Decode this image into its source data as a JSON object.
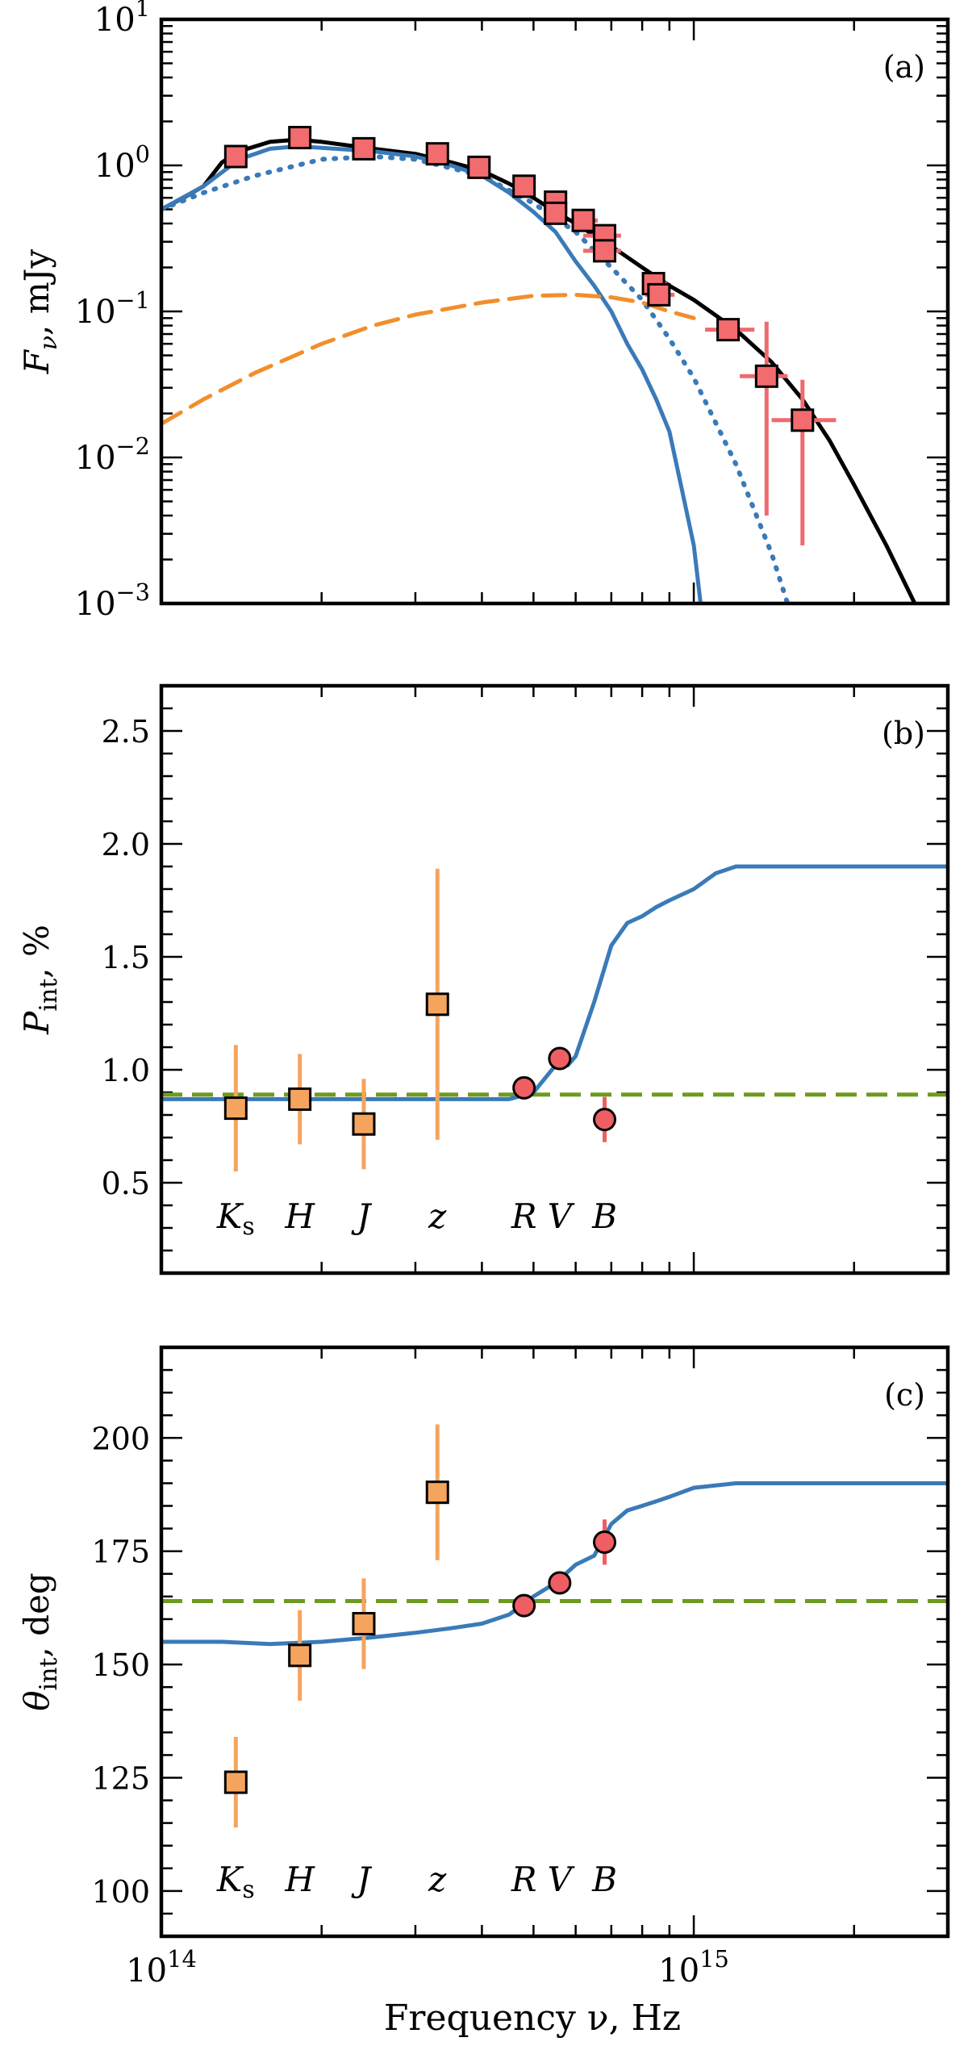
{
  "figure": {
    "xlabel": "Frequency ν, Hz",
    "x_tick_labels": [
      {
        "base": "10",
        "exp": "14",
        "value": 100000000000000.0
      },
      {
        "base": "10",
        "exp": "15",
        "value": 1000000000000000.0
      }
    ]
  },
  "chart_data": [
    {
      "panel": "(a)",
      "type": "line",
      "x_scale": "log",
      "y_scale": "log",
      "xlim": [
        100000000000000.0,
        3000000000000000.0
      ],
      "ylim": [
        0.001,
        10
      ],
      "ylabel": {
        "main": "F",
        "sub": "ν",
        "rest": ", mJy"
      },
      "y_tick_labels": [
        {
          "base": "10",
          "exp": "−3",
          "value": 0.001
        },
        {
          "base": "10",
          "exp": "−2",
          "value": 0.01
        },
        {
          "base": "10",
          "exp": "−1",
          "value": 0.1
        },
        {
          "base": "10",
          "exp": "0",
          "value": 1
        },
        {
          "base": "10",
          "exp": "1",
          "value": 10
        }
      ],
      "series": [
        {
          "style": "solid",
          "color": "#000000",
          "x": [
            100000000000000.0,
            110000000000000.0,
            120000000000000.0,
            130000000000000.0,
            140000000000000.0,
            160000000000000.0,
            180000000000000.0,
            200000000000000.0,
            250000000000000.0,
            300000000000000.0,
            350000000000000.0,
            400000000000000.0,
            450000000000000.0,
            500000000000000.0,
            550000000000000.0,
            600000000000000.0,
            700000000000000.0,
            800000000000000.0,
            900000000000000.0,
            1000000000000000.0,
            1200000000000000.0,
            1400000000000000.0,
            1600000000000000.0,
            1800000000000000.0,
            2000000000000000.0,
            2300000000000000.0,
            2600000000000000.0
          ],
          "y": [
            0.5,
            0.6,
            0.72,
            1.05,
            1.25,
            1.45,
            1.5,
            1.45,
            1.3,
            1.2,
            1.05,
            0.92,
            0.75,
            0.6,
            0.48,
            0.4,
            0.28,
            0.2,
            0.15,
            0.12,
            0.075,
            0.045,
            0.025,
            0.013,
            0.0065,
            0.0025,
            0.001
          ]
        },
        {
          "style": "solid",
          "color": "#3a7ab8",
          "x": [
            100000000000000.0,
            120000000000000.0,
            140000000000000.0,
            160000000000000.0,
            180000000000000.0,
            200000000000000.0,
            250000000000000.0,
            300000000000000.0,
            350000000000000.0,
            400000000000000.0,
            450000000000000.0,
            500000000000000.0,
            550000000000000.0,
            600000000000000.0,
            650000000000000.0,
            700000000000000.0,
            750000000000000.0,
            800000000000000.0,
            850000000000000.0,
            900000000000000.0,
            950000000000000.0,
            1000000000000000.0,
            1030000000000000.0
          ],
          "y": [
            0.5,
            0.72,
            1.1,
            1.3,
            1.35,
            1.32,
            1.25,
            1.15,
            1.0,
            0.85,
            0.65,
            0.48,
            0.35,
            0.22,
            0.15,
            0.1,
            0.06,
            0.04,
            0.025,
            0.015,
            0.006,
            0.0025,
            0.001
          ]
        },
        {
          "style": "dotted",
          "color": "#3a7ab8",
          "x": [
            100000000000000.0,
            120000000000000.0,
            150000000000000.0,
            200000000000000.0,
            250000000000000.0,
            300000000000000.0,
            400000000000000.0,
            500000000000000.0,
            600000000000000.0,
            700000000000000.0,
            800000000000000.0,
            900000000000000.0,
            1000000000000000.0,
            1200000000000000.0,
            1400000000000000.0,
            1500000000000000.0
          ],
          "y": [
            0.5,
            0.65,
            0.85,
            1.1,
            1.15,
            1.1,
            0.85,
            0.55,
            0.35,
            0.2,
            0.12,
            0.065,
            0.035,
            0.009,
            0.0022,
            0.001
          ]
        },
        {
          "style": "dashed",
          "color": "#f28e2b",
          "x": [
            100000000000000.0,
            120000000000000.0,
            150000000000000.0,
            200000000000000.0,
            250000000000000.0,
            300000000000000.0,
            400000000000000.0,
            500000000000000.0,
            600000000000000.0,
            700000000000000.0,
            800000000000000.0,
            900000000000000.0,
            1000000000000000.0
          ],
          "y": [
            0.017,
            0.025,
            0.038,
            0.06,
            0.08,
            0.095,
            0.115,
            0.128,
            0.13,
            0.125,
            0.115,
            0.1,
            0.09
          ]
        }
      ],
      "points": [
        {
          "x": 138000000000000.0,
          "y": 1.15
        },
        {
          "x": 182000000000000.0,
          "y": 1.55
        },
        {
          "x": 240000000000000.0,
          "y": 1.3
        },
        {
          "x": 330000000000000.0,
          "y": 1.2
        },
        {
          "x": 395000000000000.0,
          "y": 0.97
        },
        {
          "x": 480000000000000.0,
          "y": 0.72
        },
        {
          "x": 550000000000000.0,
          "y": 0.56,
          "xerr": [
            530000000000000.0,
            570000000000000.0
          ]
        },
        {
          "x": 550000000000000.0,
          "y": 0.47,
          "xerr": [
            530000000000000.0,
            570000000000000.0
          ]
        },
        {
          "x": 620000000000000.0,
          "y": 0.42,
          "xerr": [
            590000000000000.0,
            660000000000000.0
          ]
        },
        {
          "x": 680000000000000.0,
          "y": 0.33,
          "xerr": [
            620000000000000.0,
            730000000000000.0
          ]
        },
        {
          "x": 680000000000000.0,
          "y": 0.26,
          "xerr": [
            620000000000000.0,
            730000000000000.0
          ]
        },
        {
          "x": 840000000000000.0,
          "y": 0.155,
          "xerr": [
            800000000000000.0,
            890000000000000.0
          ]
        },
        {
          "x": 860000000000000.0,
          "y": 0.13,
          "xerr": [
            810000000000000.0,
            920000000000000.0
          ]
        },
        {
          "x": 1160000000000000.0,
          "y": 0.075,
          "xerr": [
            1050000000000000.0,
            1300000000000000.0
          ]
        },
        {
          "x": 1370000000000000.0,
          "y": 0.036,
          "xerr": [
            1220000000000000.0,
            1500000000000000.0
          ],
          "yerr": [
            0.004,
            0.085
          ]
        },
        {
          "x": 1600000000000000.0,
          "y": 0.018,
          "xerr": [
            1400000000000000.0,
            1850000000000000.0
          ],
          "yerr": [
            0.0025,
            0.034
          ]
        }
      ]
    },
    {
      "panel": "(b)",
      "type": "line",
      "x_scale": "log",
      "xlim": [
        100000000000000.0,
        3000000000000000.0
      ],
      "ylim": [
        0.1,
        2.7
      ],
      "ylabel": {
        "main": "P",
        "sub": "int",
        "rest": ",  %"
      },
      "yticks": [
        0.5,
        1.0,
        1.5,
        2.0,
        2.5
      ],
      "y_tick_labels": [
        "0.5",
        "1.0",
        "1.5",
        "2.0",
        "2.5"
      ],
      "reference_line": {
        "y": 0.89,
        "style": "dashed",
        "color": "#6e9a1f"
      },
      "series": [
        {
          "style": "solid",
          "color": "#3a7ab8",
          "x": [
            100000000000000.0,
            200000000000000.0,
            300000000000000.0,
            400000000000000.0,
            450000000000000.0,
            500000000000000.0,
            550000000000000.0,
            580000000000000.0,
            600000000000000.0,
            650000000000000.0,
            700000000000000.0,
            750000000000000.0,
            800000000000000.0,
            850000000000000.0,
            900000000000000.0,
            1000000000000000.0,
            1100000000000000.0,
            1200000000000000.0,
            1500000000000000.0,
            2000000000000000.0,
            3000000000000000.0
          ],
          "y": [
            0.87,
            0.87,
            0.87,
            0.87,
            0.87,
            0.9,
            1.02,
            1.02,
            1.06,
            1.3,
            1.55,
            1.65,
            1.68,
            1.72,
            1.75,
            1.8,
            1.87,
            1.9,
            1.9,
            1.9,
            1.9
          ]
        }
      ],
      "points": [
        {
          "x": 138000000000000.0,
          "y": 0.83,
          "marker": "square",
          "color": "#f5a45e",
          "yerr": [
            0.55,
            1.11
          ]
        },
        {
          "x": 182000000000000.0,
          "y": 0.87,
          "marker": "square",
          "color": "#f5a45e",
          "yerr": [
            0.67,
            1.07
          ]
        },
        {
          "x": 240000000000000.0,
          "y": 0.76,
          "marker": "square",
          "color": "#f5a45e",
          "yerr": [
            0.56,
            0.96
          ]
        },
        {
          "x": 330000000000000.0,
          "y": 1.29,
          "marker": "square",
          "color": "#f5a45e",
          "yerr": [
            0.69,
            1.89
          ]
        },
        {
          "x": 480000000000000.0,
          "y": 0.92,
          "marker": "circle",
          "color": "#ef5e62"
        },
        {
          "x": 560000000000000.0,
          "y": 1.05,
          "marker": "circle",
          "color": "#ef5e62"
        },
        {
          "x": 680000000000000.0,
          "y": 0.78,
          "marker": "circle",
          "color": "#ef5e62",
          "yerr": [
            0.68,
            0.88
          ]
        }
      ],
      "bands": [
        {
          "text": "K",
          "sub": "s",
          "x": 138000000000000.0
        },
        {
          "text": "H",
          "x": 182000000000000.0
        },
        {
          "text": "J",
          "x": 240000000000000.0
        },
        {
          "text": "z",
          "x": 330000000000000.0
        },
        {
          "text": "R",
          "x": 480000000000000.0
        },
        {
          "text": "V",
          "x": 560000000000000.0
        },
        {
          "text": "B",
          "x": 680000000000000.0
        }
      ]
    },
    {
      "panel": "(c)",
      "type": "line",
      "x_scale": "log",
      "xlim": [
        100000000000000.0,
        3000000000000000.0
      ],
      "ylim": [
        90,
        220
      ],
      "ylabel": {
        "main": "θ",
        "sub": "int",
        "rest": ",  deg"
      },
      "yticks": [
        100,
        125,
        150,
        175,
        200
      ],
      "y_tick_labels": [
        "100",
        "125",
        "150",
        "175",
        "200"
      ],
      "reference_line": {
        "y": 164,
        "style": "dashed",
        "color": "#6e9a1f"
      },
      "series": [
        {
          "style": "solid",
          "color": "#3a7ab8",
          "x": [
            100000000000000.0,
            130000000000000.0,
            160000000000000.0,
            200000000000000.0,
            250000000000000.0,
            300000000000000.0,
            350000000000000.0,
            400000000000000.0,
            450000000000000.0,
            500000000000000.0,
            550000000000000.0,
            600000000000000.0,
            650000000000000.0,
            700000000000000.0,
            750000000000000.0,
            800000000000000.0,
            850000000000000.0,
            900000000000000.0,
            1000000000000000.0,
            1200000000000000.0,
            1500000000000000.0,
            2000000000000000.0,
            3000000000000000.0
          ],
          "y": [
            155,
            155,
            154.5,
            155,
            156,
            157,
            158,
            159,
            161,
            165,
            168,
            172,
            174,
            181,
            184,
            185,
            186,
            187,
            189,
            190,
            190,
            190,
            190
          ]
        }
      ],
      "points": [
        {
          "x": 138000000000000.0,
          "y": 124,
          "marker": "square",
          "color": "#f5a45e",
          "yerr": [
            114,
            134
          ]
        },
        {
          "x": 182000000000000.0,
          "y": 152,
          "marker": "square",
          "color": "#f5a45e",
          "yerr": [
            142,
            162
          ]
        },
        {
          "x": 240000000000000.0,
          "y": 159,
          "marker": "square",
          "color": "#f5a45e",
          "yerr": [
            149,
            169
          ]
        },
        {
          "x": 330000000000000.0,
          "y": 188,
          "marker": "square",
          "color": "#f5a45e",
          "yerr": [
            173,
            203
          ]
        },
        {
          "x": 480000000000000.0,
          "y": 163,
          "marker": "circle",
          "color": "#ef5e62"
        },
        {
          "x": 560000000000000.0,
          "y": 168,
          "marker": "circle",
          "color": "#ef5e62"
        },
        {
          "x": 680000000000000.0,
          "y": 177,
          "marker": "circle",
          "color": "#ef5e62",
          "yerr": [
            172,
            182
          ]
        }
      ],
      "bands": [
        {
          "text": "K",
          "sub": "s",
          "x": 138000000000000.0
        },
        {
          "text": "H",
          "x": 182000000000000.0
        },
        {
          "text": "J",
          "x": 240000000000000.0
        },
        {
          "text": "z",
          "x": 330000000000000.0
        },
        {
          "text": "R",
          "x": 480000000000000.0
        },
        {
          "text": "V",
          "x": 560000000000000.0
        },
        {
          "text": "B",
          "x": 680000000000000.0
        }
      ]
    }
  ]
}
